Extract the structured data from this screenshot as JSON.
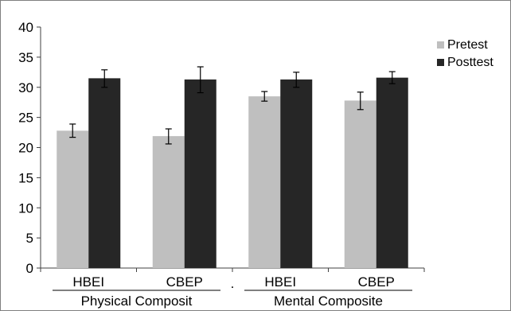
{
  "chart_data": {
    "type": "bar",
    "title": "",
    "xlabel": "",
    "ylabel": "",
    "ylim": [
      0,
      40
    ],
    "yticks": [
      0,
      5,
      10,
      15,
      20,
      25,
      30,
      35,
      40
    ],
    "categories": [
      "HBEI",
      "CBEP",
      "HBEI",
      "CBEP"
    ],
    "groups": [
      {
        "label": "Physical Composit",
        "categories": [
          0,
          1
        ]
      },
      {
        "label": "Mental Composite",
        "categories": [
          2,
          3
        ]
      }
    ],
    "separator_label": ".",
    "series": [
      {
        "name": "Pretest",
        "color": "#bfbfbf",
        "values": [
          22.8,
          21.9,
          28.5,
          27.8
        ],
        "error_low": [
          21.7,
          20.6,
          27.7,
          26.3
        ],
        "error_high": [
          23.9,
          23.1,
          29.3,
          29.2
        ]
      },
      {
        "name": "Posttest",
        "color": "#262626",
        "values": [
          31.5,
          31.3,
          31.3,
          31.6
        ],
        "error_low": [
          30.0,
          29.1,
          30.0,
          30.6
        ],
        "error_high": [
          32.9,
          33.4,
          32.5,
          32.6
        ]
      }
    ],
    "legend_position": "right",
    "grid": false
  }
}
